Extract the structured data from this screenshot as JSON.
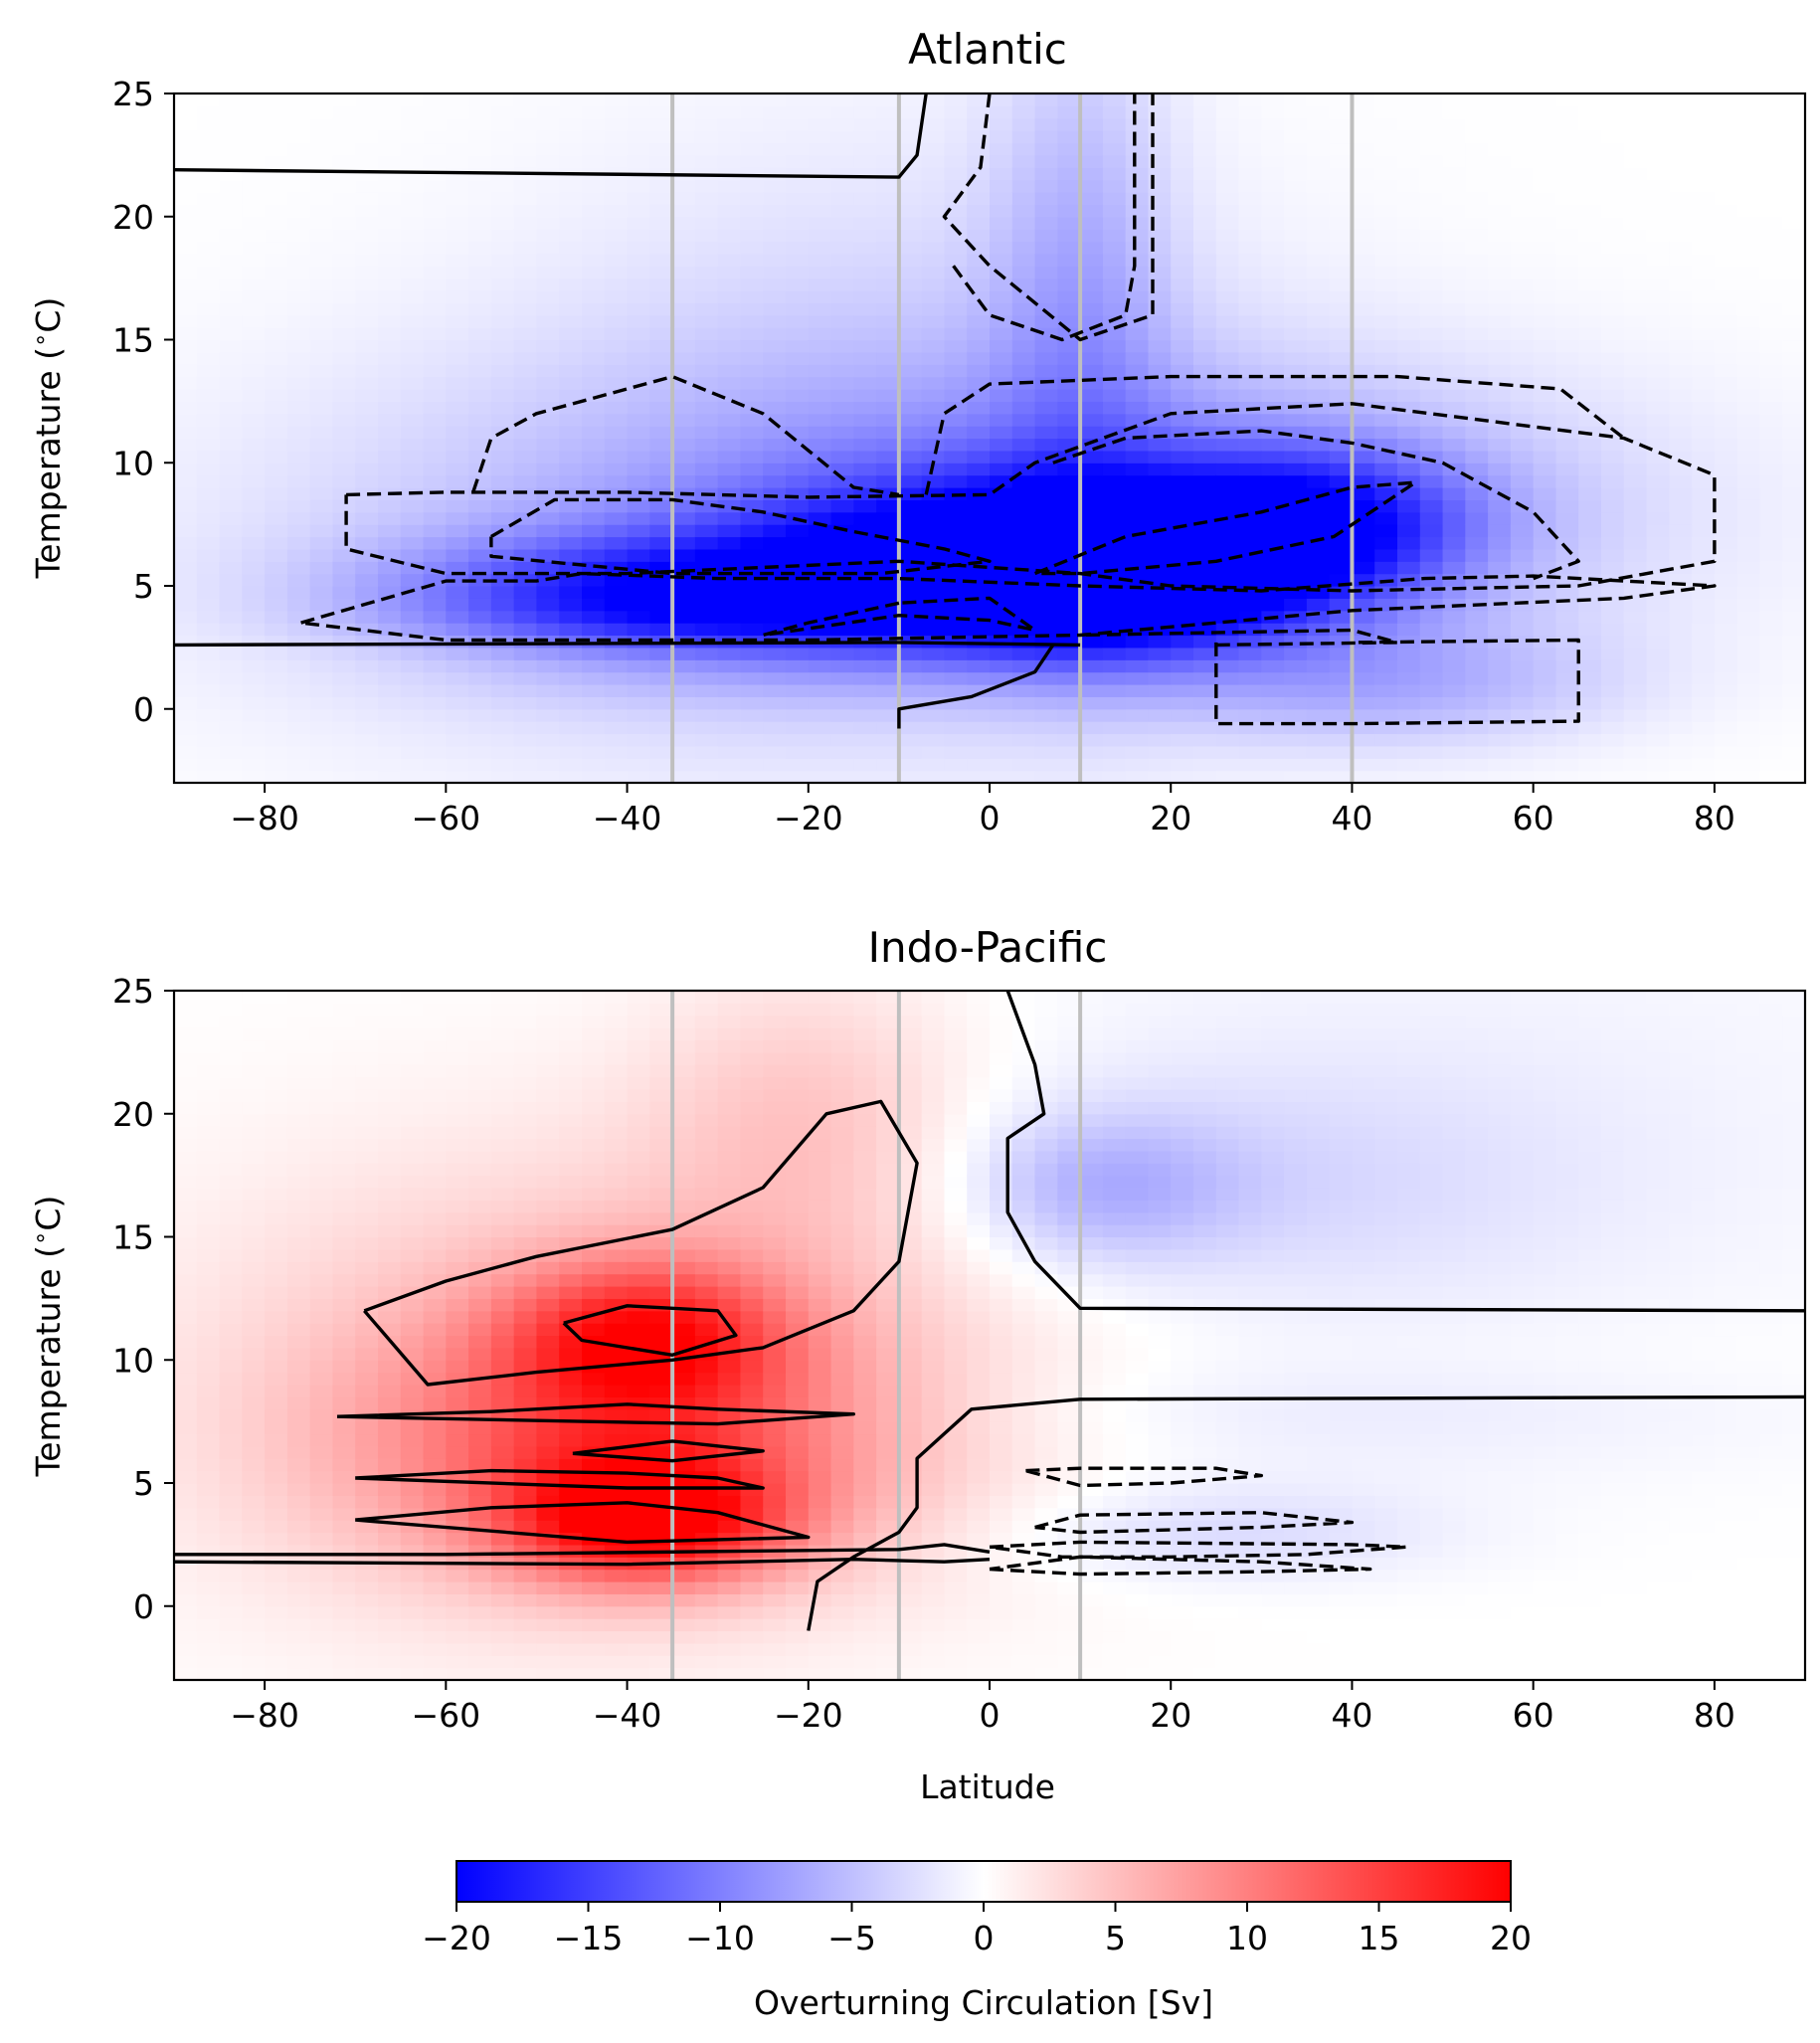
{
  "chart_data": [
    {
      "type": "heatmap",
      "title": "Atlantic",
      "xlabel": "",
      "ylabel": "Temperature ($^\\circ$C)",
      "xlim": [
        -90,
        90
      ],
      "ylim": [
        -3,
        25
      ],
      "xticks": [
        -80,
        -60,
        -40,
        -20,
        0,
        20,
        40,
        60,
        80
      ],
      "yticks": [
        0,
        5,
        10,
        15,
        20,
        25
      ],
      "section_lines": [
        -35,
        -10,
        10,
        40
      ],
      "field_blobs": [
        {
          "lat": -25,
          "temp": 6.5,
          "dlat": 55,
          "dtemp": 8,
          "value": -6
        },
        {
          "lat": -35,
          "temp": 4.5,
          "dlat": 30,
          "dtemp": 2.5,
          "value": -14
        },
        {
          "lat": -5,
          "temp": 6,
          "dlat": 25,
          "dtemp": 3.5,
          "value": -12
        },
        {
          "lat": 15,
          "temp": 5.5,
          "dlat": 20,
          "dtemp": 3,
          "value": -20
        },
        {
          "lat": 35,
          "temp": 7.5,
          "dlat": 18,
          "dtemp": 3,
          "value": -14
        },
        {
          "lat": 30,
          "temp": 8,
          "dlat": 45,
          "dtemp": 6,
          "value": -6
        },
        {
          "lat": 10,
          "temp": 17,
          "dlat": 10,
          "dtemp": 12,
          "value": -5
        },
        {
          "lat": 45,
          "temp": 1,
          "dlat": 25,
          "dtemp": 2.5,
          "value": -5
        },
        {
          "lat": -10,
          "temp": 15,
          "dlat": 40,
          "dtemp": 10,
          "value": -2.5
        },
        {
          "lat": -40,
          "temp": 2.2,
          "dlat": 30,
          "dtemp": 1,
          "value": 1.5
        }
      ],
      "zero_contours": [
        [
          [
            -90,
            21.9
          ],
          [
            -10,
            21.6
          ],
          [
            -8,
            22.5
          ],
          [
            -7,
            25
          ]
        ],
        [
          [
            -90,
            2.6
          ],
          [
            -10,
            2.7
          ],
          [
            10,
            2.6
          ]
        ],
        [
          [
            -10,
            -0.8
          ],
          [
            -10,
            0
          ],
          [
            -2,
            0.5
          ],
          [
            5,
            1.5
          ],
          [
            7,
            2.6
          ]
        ]
      ],
      "negative_contours": [
        [
          [
            -76,
            3.5
          ],
          [
            -60,
            5.2
          ],
          [
            -50,
            5.2
          ],
          [
            -45,
            5.5
          ],
          [
            -30,
            5.3
          ],
          [
            -10,
            5.3
          ],
          [
            10,
            5
          ],
          [
            30,
            4.8
          ],
          [
            48,
            5.3
          ],
          [
            60,
            5.4
          ],
          [
            80,
            5
          ],
          [
            70,
            4.5
          ],
          [
            40,
            4
          ],
          [
            10,
            3
          ],
          [
            -20,
            2.8
          ],
          [
            -60,
            2.8
          ],
          [
            -76,
            3.5
          ]
        ],
        [
          [
            -71,
            8.7
          ],
          [
            -60,
            8.8
          ],
          [
            -40,
            8.8
          ],
          [
            -20,
            8.6
          ],
          [
            0,
            8.7
          ],
          [
            5,
            10
          ],
          [
            20,
            12
          ],
          [
            40,
            12.4
          ],
          [
            70,
            11
          ],
          [
            80,
            9.5
          ],
          [
            80,
            6
          ],
          [
            65,
            5
          ],
          [
            40,
            4.8
          ],
          [
            20,
            5
          ],
          [
            10,
            5.5
          ],
          [
            -10,
            6
          ],
          [
            -40,
            5.5
          ],
          [
            -60,
            5.5
          ],
          [
            -71,
            6.5
          ],
          [
            -71,
            8.7
          ]
        ],
        [
          [
            -57,
            8.8
          ],
          [
            -55,
            11
          ],
          [
            -50,
            12
          ],
          [
            -35,
            13.5
          ],
          [
            -25,
            12
          ],
          [
            -20,
            10.5
          ],
          [
            -15,
            9
          ],
          [
            -10,
            8.7
          ]
        ],
        [
          [
            -7,
            8.7
          ],
          [
            -5,
            12
          ],
          [
            0,
            13.2
          ],
          [
            20,
            13.5
          ],
          [
            45,
            13.5
          ],
          [
            63,
            13
          ],
          [
            70,
            11
          ]
        ],
        [
          [
            7,
            10
          ],
          [
            15,
            11
          ],
          [
            30,
            11.3
          ],
          [
            40,
            10.8
          ],
          [
            50,
            10
          ],
          [
            60,
            8
          ],
          [
            65,
            6
          ],
          [
            60,
            5.3
          ]
        ],
        [
          [
            -55,
            7
          ],
          [
            -48,
            8.5
          ],
          [
            -35,
            8.5
          ],
          [
            -25,
            8
          ],
          [
            -15,
            7.2
          ],
          [
            -5,
            6.5
          ],
          [
            0,
            6
          ],
          [
            -12,
            5.5
          ],
          [
            -35,
            5.5
          ],
          [
            -55,
            6.2
          ],
          [
            -55,
            7
          ]
        ],
        [
          [
            5,
            5.5
          ],
          [
            15,
            7
          ],
          [
            30,
            8
          ],
          [
            40,
            9
          ],
          [
            47,
            9.2
          ],
          [
            38,
            7
          ],
          [
            25,
            6
          ],
          [
            10,
            5.5
          ],
          [
            5,
            5.5
          ]
        ],
        [
          [
            -10,
            4.3
          ],
          [
            -20,
            3.5
          ],
          [
            -25,
            3
          ],
          [
            -10,
            3.8
          ],
          [
            0,
            3.6
          ],
          [
            5,
            3.2
          ],
          [
            0,
            4.5
          ],
          [
            -10,
            4.3
          ]
        ],
        [
          [
            0,
            25
          ],
          [
            -1,
            22
          ],
          [
            -5,
            20
          ],
          [
            0,
            18
          ],
          [
            10,
            15
          ],
          [
            18,
            16
          ],
          [
            18,
            25
          ]
        ],
        [
          [
            -4,
            18
          ],
          [
            0,
            16
          ],
          [
            8,
            15
          ],
          [
            15,
            16
          ],
          [
            16,
            18
          ],
          [
            16,
            25
          ]
        ],
        [
          [
            25,
            2.7
          ],
          [
            25,
            -0.6
          ],
          [
            40,
            -0.6
          ],
          [
            65,
            -0.5
          ],
          [
            65,
            2.8
          ],
          [
            40,
            2.7
          ]
        ],
        [
          [
            25,
            2.6
          ],
          [
            45,
            2.7
          ],
          [
            40,
            3.2
          ],
          [
            10,
            3
          ]
        ]
      ]
    },
    {
      "type": "heatmap",
      "title": "Indo-Pacific",
      "xlabel": "Latitude",
      "ylabel": "Temperature ($^\\circ$C)",
      "xlim": [
        -90,
        90
      ],
      "ylim": [
        -3,
        25
      ],
      "xticks": [
        -80,
        -60,
        -40,
        -20,
        0,
        20,
        40,
        60,
        80
      ],
      "yticks": [
        0,
        5,
        10,
        15,
        20,
        25
      ],
      "section_lines": [
        -35,
        -10,
        10
      ],
      "field_blobs": [
        {
          "lat": -38,
          "temp": 11,
          "dlat": 15,
          "dtemp": 3,
          "value": 12
        },
        {
          "lat": -38,
          "temp": 3.5,
          "dlat": 15,
          "dtemp": 2.5,
          "value": 15
        },
        {
          "lat": -40,
          "temp": 6.5,
          "dlat": 30,
          "dtemp": 5,
          "value": 9
        },
        {
          "lat": -35,
          "temp": 10,
          "dlat": 45,
          "dtemp": 9,
          "value": 4
        },
        {
          "lat": -20,
          "temp": 20,
          "dlat": 18,
          "dtemp": 6,
          "value": 4
        },
        {
          "lat": -55,
          "temp": 8,
          "dlat": 40,
          "dtemp": 10,
          "value": 2
        },
        {
          "lat": 12,
          "temp": 17,
          "dlat": 15,
          "dtemp": 3,
          "value": -5
        },
        {
          "lat": 30,
          "temp": 17,
          "dlat": 35,
          "dtemp": 5,
          "value": -2.5
        },
        {
          "lat": 25,
          "temp": 3,
          "dlat": 25,
          "dtemp": 2,
          "value": -3
        },
        {
          "lat": 30,
          "temp": 8,
          "dlat": 50,
          "dtemp": 3,
          "value": -1.5
        },
        {
          "lat": 50,
          "temp": 20,
          "dlat": 60,
          "dtemp": 10,
          "value": -1
        },
        {
          "lat": 50,
          "temp": 10.2,
          "dlat": 50,
          "dtemp": 1.8,
          "value": 0.5
        }
      ],
      "zero_contours": [
        [
          [
            -90,
            2.1
          ],
          [
            -60,
            2.1
          ],
          [
            -10,
            2.3
          ],
          [
            -5,
            2.5
          ],
          [
            0,
            2.2
          ]
        ],
        [
          [
            -90,
            1.8
          ],
          [
            -40,
            1.7
          ],
          [
            -15,
            1.9
          ],
          [
            -5,
            1.8
          ],
          [
            0,
            1.9
          ]
        ],
        [
          [
            -20,
            -1
          ],
          [
            -19,
            1
          ],
          [
            -15,
            2
          ],
          [
            -10,
            3
          ],
          [
            -8,
            4
          ],
          [
            -8,
            6
          ],
          [
            -5,
            7
          ],
          [
            -2,
            8
          ],
          [
            10,
            8.4
          ],
          [
            90,
            8.5
          ]
        ],
        [
          [
            2,
            25
          ],
          [
            5,
            22
          ],
          [
            6,
            20
          ],
          [
            2,
            19
          ],
          [
            2,
            16
          ],
          [
            5,
            14
          ],
          [
            10,
            12.1
          ],
          [
            90,
            12
          ]
        ],
        [
          [
            -69,
            12
          ],
          [
            -60,
            13.2
          ],
          [
            -50,
            14.2
          ],
          [
            -35,
            15.3
          ],
          [
            -25,
            17
          ],
          [
            -18,
            20
          ],
          [
            -12,
            20.5
          ],
          [
            -8,
            18
          ],
          [
            -10,
            14
          ],
          [
            -15,
            12
          ],
          [
            -25,
            10.5
          ],
          [
            -35,
            10
          ],
          [
            -50,
            9.5
          ],
          [
            -62,
            9
          ],
          [
            -69,
            12
          ]
        ],
        [
          [
            -47,
            11.5
          ],
          [
            -40,
            12.2
          ],
          [
            -30,
            12
          ],
          [
            -28,
            11
          ],
          [
            -35,
            10.2
          ],
          [
            -45,
            10.8
          ],
          [
            -47,
            11.5
          ]
        ],
        [
          [
            -72,
            7.7
          ],
          [
            -55,
            7.9
          ],
          [
            -40,
            8.2
          ],
          [
            -30,
            8
          ],
          [
            -15,
            7.8
          ],
          [
            -30,
            7.4
          ],
          [
            -45,
            7.5
          ],
          [
            -72,
            7.7
          ]
        ],
        [
          [
            -70,
            5.2
          ],
          [
            -55,
            5.5
          ],
          [
            -40,
            5.4
          ],
          [
            -30,
            5.2
          ],
          [
            -25,
            4.8
          ],
          [
            -40,
            4.8
          ],
          [
            -70,
            5.2
          ]
        ],
        [
          [
            -70,
            3.5
          ],
          [
            -55,
            4
          ],
          [
            -40,
            4.2
          ],
          [
            -30,
            3.8
          ],
          [
            -20,
            2.8
          ],
          [
            -40,
            2.6
          ],
          [
            -70,
            3.5
          ]
        ],
        [
          [
            -46,
            6.2
          ],
          [
            -35,
            6.7
          ],
          [
            -25,
            6.3
          ],
          [
            -35,
            5.9
          ],
          [
            -46,
            6.2
          ]
        ]
      ],
      "negative_contours": [
        [
          [
            4,
            5.5
          ],
          [
            10,
            5.6
          ],
          [
            25,
            5.6
          ],
          [
            30,
            5.3
          ],
          [
            20,
            5
          ],
          [
            10,
            4.9
          ],
          [
            4,
            5.5
          ]
        ],
        [
          [
            5,
            3.2
          ],
          [
            10,
            3.7
          ],
          [
            30,
            3.8
          ],
          [
            40,
            3.4
          ],
          [
            30,
            3.2
          ],
          [
            10,
            3
          ],
          [
            5,
            3.2
          ]
        ],
        [
          [
            0,
            2.4
          ],
          [
            10,
            2.6
          ],
          [
            40,
            2.5
          ],
          [
            46,
            2.4
          ],
          [
            35,
            2.1
          ],
          [
            20,
            2
          ],
          [
            8,
            2
          ],
          [
            0,
            2.4
          ]
        ],
        [
          [
            0,
            1.5
          ],
          [
            10,
            1.3
          ],
          [
            30,
            1.4
          ],
          [
            42,
            1.5
          ],
          [
            30,
            1.8
          ],
          [
            10,
            2
          ],
          [
            0,
            1.5
          ]
        ]
      ]
    }
  ],
  "colorbar": {
    "label": "Overturning Circulation [Sv]",
    "range": [
      -20,
      20
    ],
    "ticks": [
      -20,
      -15,
      -10,
      -5,
      0,
      5,
      10,
      15,
      20
    ],
    "colormap": "bwr",
    "low_color": "#0000ff",
    "mid_color": "#ffffff",
    "high_color": "#ff0000"
  },
  "colors": {
    "contour": "#000000",
    "section_line": "#bfbfbf",
    "axes": "#000000",
    "background": "#ffffff"
  }
}
